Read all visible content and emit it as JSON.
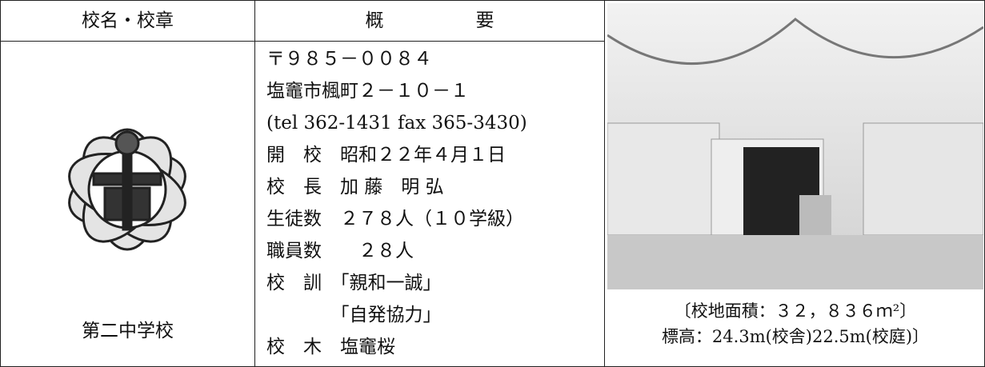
{
  "table": {
    "headers": [
      "校名・校章",
      "概　　　　　要"
    ],
    "school_name": "第二中学校",
    "overview": [
      "〒９８５－００８４",
      "塩竈市楓町２－１０－１",
      "(tel 362-1431 fax 365-3430)",
      "開　校　昭和２２年４月１日",
      "校　長　加 藤　明 弘",
      "生徒数　２７８人（１０学級）",
      "職員数　　２８人",
      "校　訓　「親和一誠」",
      "　　　　「自発協力」",
      "校　木　塩竈桜"
    ],
    "photo_caption": [
      "〔校地面積：３２，８３６ｍ²〕",
      "標高：24.3m(校舎)22.5m(校庭)〕"
    ]
  }
}
